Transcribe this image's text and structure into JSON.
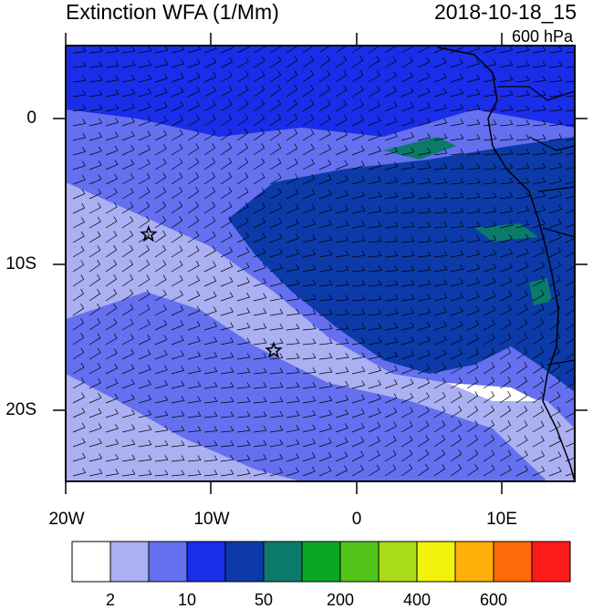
{
  "header": {
    "title": "Extinction WFA (1/Mm)",
    "datetime": "2018-10-18_15",
    "level": "600 hPa"
  },
  "map": {
    "lat_ticks": [
      "0",
      "10S",
      "20S"
    ],
    "lon_ticks": [
      "20W",
      "10W",
      "0",
      "10E"
    ],
    "extent": {
      "lon_min": -20,
      "lon_max": 15,
      "lat_min": -25,
      "lat_max": 5
    },
    "markers": [
      {
        "name": "star",
        "lon": -14.3,
        "lat": -8.0
      },
      {
        "name": "star",
        "lon": -5.7,
        "lat": -16.0
      }
    ],
    "fill_colors": {
      "lt2": "#ffffff",
      "2-5": "#aab0f2",
      "5-10": "#6470f0",
      "10-20": "#1a2de8",
      "20-50": "#0c3aa8",
      "50-100": "#0b7a6a",
      "land_outline": "#000000"
    }
  },
  "colorbar": {
    "colors": [
      "#ffffff",
      "#aab0f2",
      "#6470f0",
      "#1a2de8",
      "#0c3aa8",
      "#0b7a6a",
      "#0aa623",
      "#55c41a",
      "#a8dc1a",
      "#f2f20a",
      "#ffb00a",
      "#ff6a0a",
      "#ff1a1a"
    ],
    "labels": [
      "2",
      "10",
      "50",
      "200",
      "400",
      "600"
    ]
  }
}
